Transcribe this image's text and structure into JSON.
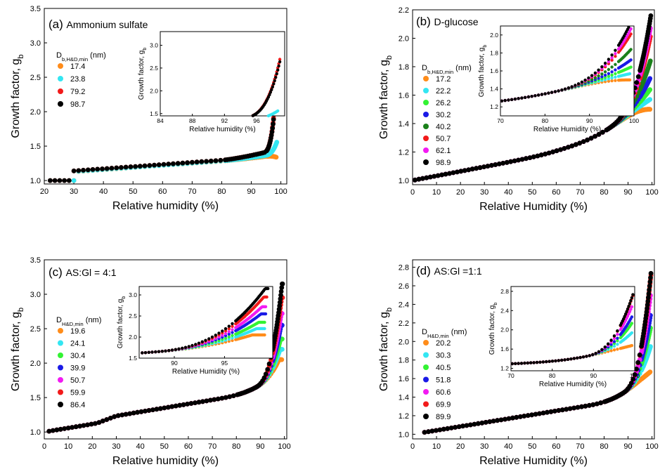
{
  "colors": {
    "orange": "#ff8c1a",
    "cyan": "#33e6f2",
    "green": "#33f233",
    "blue": "#1a1ae6",
    "darkgreen": "#1a801a",
    "red": "#f21a1a",
    "magenta": "#f21af2",
    "black": "#000000"
  },
  "chart_data": [
    {
      "type": "scatter",
      "panel_label": "(a)",
      "title": "Ammonium sulfate",
      "xlabel": "Relative humidity (%)",
      "ylabel": "Growth factor, g",
      "ylabel_sub": "b",
      "xlim": [
        20,
        102
      ],
      "ylim": [
        0.95,
        3.5
      ],
      "xticks": [
        "20",
        "30",
        "40",
        "50",
        "60",
        "70",
        "80",
        "90",
        "100"
      ],
      "yticks": [
        "1.0",
        "1.5",
        "2.0",
        "2.5",
        "3.0",
        "3.5"
      ],
      "legend_title": "D",
      "legend_title_sub": "b,H&D,min",
      "legend_title_tail": " (nm)",
      "legend_position": "upper-left",
      "series": [
        {
          "name": "17.4",
          "color": "orange",
          "deliq": 31,
          "gd": 1.13,
          "gmax": 1.85,
          "k": 0.035,
          "x_end": 98.6
        },
        {
          "name": "23.8",
          "color": "cyan",
          "deliq": 30.5,
          "gd": 1.13,
          "gmax": 2.08,
          "k": 0.05,
          "x_end": 98.7
        },
        {
          "name": "79.2",
          "color": "red",
          "deliq": 30,
          "gd": 1.14,
          "gmax": 3.2,
          "k": 0.11,
          "x_end": 98.9
        },
        {
          "name": "98.7",
          "color": "black",
          "deliq": 30,
          "gd": 1.14,
          "gmax": 3.22,
          "k": 0.11,
          "x_end": 99.0
        }
      ],
      "inset": {
        "xlabel": "Relative humidity (%)",
        "ylabel": "Growth factor, g",
        "ylabel_sub": "b",
        "xlim": [
          84,
          99.5
        ],
        "ylim": [
          1.45,
          3.3
        ],
        "xticks": [
          "84",
          "88",
          "92",
          "96"
        ],
        "yticks": [
          "1.5",
          "2.0",
          "2.5",
          "3.0"
        ]
      }
    },
    {
      "type": "scatter",
      "panel_label": "(b)",
      "title": "D-glucose",
      "xlabel": "Relative Humidity (%)",
      "ylabel": "Growth factor, g",
      "ylabel_sub": "b",
      "xlim": [
        0,
        101
      ],
      "ylim": [
        0.97,
        2.2
      ],
      "xticks": [
        "0",
        "10",
        "20",
        "30",
        "40",
        "50",
        "60",
        "70",
        "80",
        "90",
        "100"
      ],
      "yticks": [
        "1.0",
        "1.2",
        "1.4",
        "1.6",
        "1.8",
        "2.0",
        "2.2"
      ],
      "legend_title": "D",
      "legend_title_sub": "b,H&D,min",
      "legend_title_tail": " (nm)",
      "legend_position": "center-left",
      "series": [
        {
          "name": "17.2",
          "color": "orange",
          "gmax": 1.38,
          "k": 0.13,
          "x_end": 99.2
        },
        {
          "name": "22.2",
          "color": "cyan",
          "gmax": 1.45,
          "k": 0.13,
          "x_end": 99.2
        },
        {
          "name": "26.2",
          "color": "green",
          "gmax": 1.52,
          "k": 0.13,
          "x_end": 99.3
        },
        {
          "name": "30.2",
          "color": "blue",
          "gmax": 1.6,
          "k": 0.13,
          "x_end": 99.3
        },
        {
          "name": "40.2",
          "color": "darkgreen",
          "gmax": 1.72,
          "k": 0.13,
          "x_end": 99.4
        },
        {
          "name": "50.7",
          "color": "red",
          "gmax": 1.9,
          "k": 0.13,
          "x_end": 99.5
        },
        {
          "name": "62.1",
          "color": "magenta",
          "gmax": 1.96,
          "k": 0.13,
          "x_end": 99.5
        },
        {
          "name": "98.9",
          "color": "black",
          "gmax": 2.04,
          "k": 0.13,
          "x_end": 99.6
        }
      ],
      "inset": {
        "xlabel": "Relative Humidity (%)",
        "ylabel": "Growth factor, g",
        "ylabel_sub": "b",
        "xlim": [
          70,
          100
        ],
        "ylim": [
          1.1,
          2.1
        ],
        "xticks": [
          "70",
          "80",
          "90",
          "100"
        ],
        "yticks": [
          "1.2",
          "1.4",
          "1.6",
          "1.8",
          "2.0"
        ]
      }
    },
    {
      "type": "scatter",
      "panel_label": "(c)",
      "title": "AS:Gl = 4:1",
      "xlabel": "Relative humidity (%)",
      "ylabel": "Growth factor, g",
      "ylabel_sub": "b",
      "xlim": [
        0,
        101
      ],
      "ylim": [
        0.9,
        3.5
      ],
      "xticks": [
        "0",
        "10",
        "20",
        "30",
        "40",
        "50",
        "60",
        "70",
        "80",
        "90",
        "100"
      ],
      "yticks": [
        "1.0",
        "1.5",
        "2.0",
        "2.5",
        "3.0",
        "3.5"
      ],
      "legend_title": "D",
      "legend_title_sub": "H&D,min",
      "legend_title_tail": " (nm)",
      "legend_position": "center-left",
      "series": [
        {
          "name": "19.6",
          "color": "orange",
          "gmax": 2.05,
          "k": 0.035,
          "x_end": 99.0
        },
        {
          "name": "24.1",
          "color": "cyan",
          "gmax": 2.2,
          "k": 0.045,
          "x_end": 99.1
        },
        {
          "name": "30.4",
          "color": "green",
          "gmax": 2.35,
          "k": 0.05,
          "x_end": 99.1
        },
        {
          "name": "39.9",
          "color": "blue",
          "gmax": 2.55,
          "k": 0.06,
          "x_end": 99.2
        },
        {
          "name": "50.7",
          "color": "magenta",
          "gmax": 2.72,
          "k": 0.065,
          "x_end": 99.2
        },
        {
          "name": "59.9",
          "color": "red",
          "gmax": 2.95,
          "k": 0.08,
          "x_end": 99.3
        },
        {
          "name": "86.4",
          "color": "black",
          "gmax": 3.15,
          "k": 0.1,
          "x_end": 99.4
        }
      ],
      "inset": {
        "xlabel": "Relative Humidity (%)",
        "ylabel": "Growth factor, g",
        "ylabel_sub": "b",
        "xlim": [
          86.5,
          99.8
        ],
        "ylim": [
          1.5,
          3.2
        ],
        "xticks": [
          "90",
          "95"
        ],
        "yticks": [
          "1.5",
          "2.0",
          "2.5",
          "3.0"
        ]
      }
    },
    {
      "type": "scatter",
      "panel_label": "(d)",
      "title": "AS:Gl =1:1",
      "xlabel": "Relative Humidity (%)",
      "ylabel": "Growth factor, g",
      "ylabel_sub": "b",
      "xlim": [
        0,
        101
      ],
      "ylim": [
        0.95,
        2.88
      ],
      "xticks": [
        "0",
        "10",
        "20",
        "30",
        "40",
        "50",
        "60",
        "70",
        "80",
        "90",
        "100"
      ],
      "yticks": [
        "1.0",
        "1.2",
        "1.4",
        "1.6",
        "1.8",
        "2.0",
        "2.2",
        "2.4",
        "2.6",
        "2.8"
      ],
      "legend_title": "D",
      "legend_title_sub": "H&D,min",
      "legend_title_tail": " (nm)",
      "legend_position": "center-left",
      "series": [
        {
          "name": "20.2",
          "color": "orange",
          "gmax": 1.78,
          "k": 0.065,
          "x_end": 99.3
        },
        {
          "name": "30.3",
          "color": "cyan",
          "gmax": 2.05,
          "k": 0.075,
          "x_end": 99.4
        },
        {
          "name": "40.5",
          "color": "green",
          "gmax": 2.25,
          "k": 0.08,
          "x_end": 99.4
        },
        {
          "name": "51.8",
          "color": "blue",
          "gmax": 2.4,
          "k": 0.085,
          "x_end": 99.5
        },
        {
          "name": "60.6",
          "color": "magenta",
          "gmax": 2.62,
          "k": 0.09,
          "x_end": 99.5
        },
        {
          "name": "69.9",
          "color": "red",
          "gmax": 2.82,
          "k": 0.095,
          "x_end": 99.6
        },
        {
          "name": "89.9",
          "color": "black",
          "gmax": 2.84,
          "k": 0.1,
          "x_end": 99.6
        }
      ],
      "inset": {
        "xlabel": "Relative Humidity (%)",
        "ylabel": "Growth factor, g",
        "ylabel_sub": "b",
        "xlim": [
          70,
          100
        ],
        "ylim": [
          1.15,
          2.9
        ],
        "xticks": [
          "70",
          "80",
          "90",
          "100"
        ],
        "yticks": [
          "1.2",
          "1.6",
          "2.0",
          "2.4",
          "2.8"
        ]
      }
    }
  ]
}
